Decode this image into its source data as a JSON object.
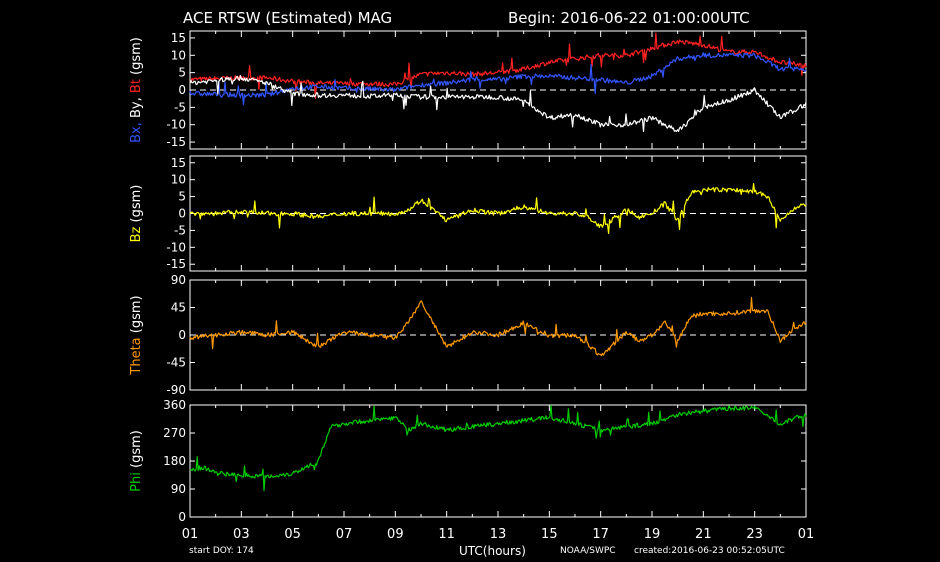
{
  "header": {
    "title": "ACE RTSW (Estimated) MAG",
    "begin": "Begin: 2016-06-22 01:00:00UTC"
  },
  "footer": {
    "start_doy": "start DOY:  174",
    "xlabel": "UTC(hours)",
    "agency": "NOAA/SWPC",
    "created": "created:2016-06-23 00:52:05UTC"
  },
  "colors": {
    "bx": "#3355ff",
    "by": "#ffffff",
    "bt": "#ff2222",
    "bz": "#ffff00",
    "theta": "#ff9900",
    "phi": "#00cc00"
  },
  "chart_data": [
    {
      "type": "scatter",
      "ylabel_parts": [
        "Bx",
        "By",
        "Bt",
        "(gsm)"
      ],
      "ylim": [
        -17,
        17
      ],
      "yticks": [
        -15,
        -10,
        -5,
        0,
        5,
        10,
        15
      ],
      "x_ticks": [
        "01",
        "03",
        "05",
        "07",
        "09",
        "11",
        "13",
        "15",
        "17",
        "19",
        "21",
        "23",
        "01"
      ],
      "zero_line": true,
      "series": [
        {
          "name": "Bt",
          "color": "#ff2222",
          "x": [
            0,
            2,
            3,
            4,
            5,
            6,
            7,
            8,
            9,
            10,
            11,
            12,
            13,
            14,
            15,
            16,
            17,
            18,
            19,
            20,
            21,
            22,
            23,
            24
          ],
          "y": [
            3,
            3.5,
            3.5,
            2.5,
            2,
            1.8,
            1.8,
            1.6,
            4.5,
            5,
            4.5,
            5,
            6,
            8,
            9,
            10,
            10,
            12,
            14,
            13,
            11,
            11,
            8,
            7
          ]
        },
        {
          "name": "Bx",
          "color": "#3355ff",
          "x": [
            0,
            2,
            3,
            4,
            5,
            6,
            7,
            8,
            9,
            10,
            11,
            12,
            13,
            14,
            15,
            16,
            17,
            18,
            19,
            20,
            21,
            22,
            23,
            24
          ],
          "y": [
            -1,
            -1.5,
            -1.5,
            0.5,
            1,
            0.5,
            0.3,
            0,
            1.5,
            2,
            3,
            3,
            4,
            4,
            3.5,
            3,
            2,
            4,
            9,
            10,
            10,
            10,
            6,
            6
          ]
        },
        {
          "name": "By",
          "color": "#ffffff",
          "x": [
            0,
            2,
            3,
            4,
            5,
            6,
            7,
            8,
            9,
            10,
            11,
            12,
            13,
            14,
            15,
            16,
            17,
            18,
            19,
            20,
            21,
            22,
            23,
            24
          ],
          "y": [
            2,
            3.5,
            2,
            -1,
            -1.5,
            -1.5,
            -1.8,
            -1.5,
            -2,
            -2,
            -2,
            -2,
            -3,
            -8,
            -7,
            -10,
            -10,
            -8,
            -12,
            -5,
            -3,
            0,
            -8,
            -4
          ]
        }
      ]
    },
    {
      "type": "scatter",
      "ylabel_parts": [
        "Bz",
        "(gsm)"
      ],
      "ylim": [
        -17,
        17
      ],
      "yticks": [
        -15,
        -10,
        -5,
        0,
        5,
        10,
        15
      ],
      "x_ticks": [
        "01",
        "03",
        "05",
        "07",
        "09",
        "11",
        "13",
        "15",
        "17",
        "19",
        "21",
        "23",
        "01"
      ],
      "zero_line": true,
      "series": [
        {
          "name": "Bz",
          "color": "#ffff00",
          "x": [
            0,
            1,
            2,
            3,
            4,
            5,
            6,
            7,
            8,
            8.5,
            9,
            10,
            11,
            12,
            13,
            14,
            15,
            15.5,
            16,
            17,
            17.5,
            18,
            18.5,
            19,
            19.5,
            20,
            21,
            22,
            22.5,
            23,
            23.5,
            24
          ],
          "y": [
            0,
            0,
            0.5,
            0,
            0,
            -1,
            0,
            0,
            0,
            1,
            4,
            -2,
            1,
            0,
            2,
            0,
            0,
            -1,
            -4,
            1,
            -1,
            0,
            3,
            -2,
            6,
            7,
            7,
            6.5,
            5,
            -2,
            1,
            3
          ]
        }
      ]
    },
    {
      "type": "scatter",
      "ylabel_parts": [
        "Theta",
        "(gsm)"
      ],
      "ylim": [
        -90,
        90
      ],
      "yticks": [
        -90,
        -45,
        0,
        45,
        90
      ],
      "x_ticks": [
        "01",
        "03",
        "05",
        "07",
        "09",
        "11",
        "13",
        "15",
        "17",
        "19",
        "21",
        "23",
        "01"
      ],
      "zero_line": true,
      "series": [
        {
          "name": "Theta",
          "color": "#ff9900",
          "x": [
            0,
            1,
            2,
            3,
            4,
            5,
            6,
            7,
            8,
            8.5,
            9,
            10,
            11,
            12,
            13,
            14,
            15,
            15.5,
            16,
            17,
            17.5,
            18,
            18.5,
            19,
            19.5,
            20,
            21,
            22,
            22.5,
            23,
            23.5,
            24
          ],
          "y": [
            -5,
            0,
            5,
            0,
            5,
            -20,
            5,
            0,
            -5,
            20,
            55,
            -20,
            5,
            0,
            20,
            -2,
            0,
            -15,
            -35,
            5,
            -10,
            0,
            20,
            -10,
            30,
            35,
            35,
            40,
            40,
            -10,
            10,
            20
          ]
        }
      ]
    },
    {
      "type": "scatter",
      "ylabel_parts": [
        "Phi",
        "(gsm)"
      ],
      "ylim": [
        0,
        360
      ],
      "yticks": [
        0,
        90,
        180,
        270,
        360
      ],
      "x_ticks": [
        "01",
        "03",
        "05",
        "07",
        "09",
        "11",
        "13",
        "15",
        "17",
        "19",
        "21",
        "23",
        "01"
      ],
      "zero_line": false,
      "series": [
        {
          "name": "Phi",
          "color": "#00cc00",
          "x": [
            0,
            0.5,
            1,
            2,
            3,
            4,
            5,
            5.5,
            6,
            7,
            8,
            8.5,
            9,
            10,
            11,
            12,
            13,
            14,
            15,
            16,
            17,
            18,
            19,
            20,
            21,
            22,
            23,
            24
          ],
          "y": [
            150,
            160,
            140,
            135,
            130,
            140,
            180,
            290,
            300,
            310,
            320,
            280,
            300,
            280,
            290,
            300,
            310,
            320,
            300,
            280,
            290,
            300,
            330,
            340,
            350,
            350,
            300,
            330
          ]
        }
      ]
    }
  ]
}
